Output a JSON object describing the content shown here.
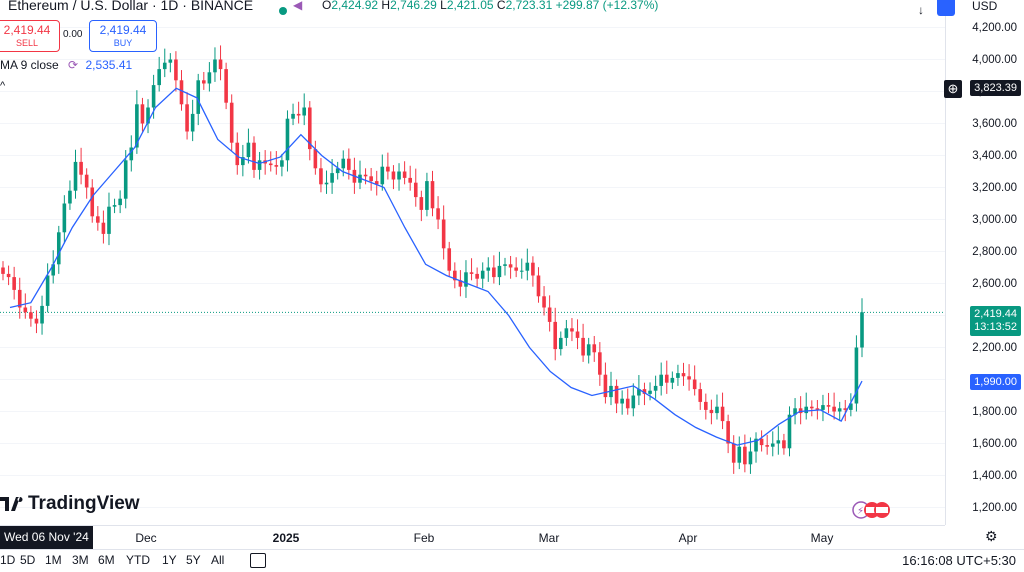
{
  "symbol": {
    "title": "Ethereum / U.S. Dollar · 1D · BINANCE",
    "open_label": "O",
    "open": "2,424.92",
    "high_label": "H",
    "high": "2,746.29",
    "low_label": "L",
    "low": "2,421.05",
    "close_label": "C",
    "close": "2,723.31",
    "change": "+299.87 (+12.37%)"
  },
  "trade": {
    "sell_price": "2,419.44",
    "sell_label": "SELL",
    "spread": "0.00",
    "buy_price": "2,419.44",
    "buy_label": "BUY"
  },
  "indicator": {
    "name": "MA 9 close",
    "value": "2,535.41"
  },
  "price_axis": {
    "currency": "USD",
    "ticks": [
      "4,200.00",
      "4,000.00",
      "3,800.00",
      "3,600.00",
      "3,400.00",
      "3,200.00",
      "3,000.00",
      "2,800.00",
      "2,600.00",
      "2,400.00",
      "2,200.00",
      "2,000.00",
      "1,800.00",
      "1,600.00",
      "1,400.00",
      "1,200.00"
    ],
    "crosshair_price": "3,823.39",
    "last_price": "2,419.44",
    "countdown": "13:13:52",
    "ma_price": "1,990.00"
  },
  "time_axis": {
    "cursor_label": "Wed 06 Nov '24",
    "labels": [
      "Dec",
      "2025",
      "Feb",
      "Mar",
      "Apr",
      "May"
    ]
  },
  "bottom": {
    "ranges": [
      "1D",
      "5D",
      "1M",
      "3M",
      "6M",
      "YTD",
      "1Y",
      "5Y",
      "All"
    ],
    "clock": "16:16:08 UTC+5:30"
  },
  "branding": {
    "logo_text": "TradingView"
  },
  "colors": {
    "up": "#089981",
    "down": "#f23645",
    "ma": "#2962ff",
    "grid": "#f0f3fa"
  },
  "chart_data": {
    "type": "candlestick",
    "title": "Ethereum / U.S. Dollar · 1D · BINANCE",
    "xlabel": "",
    "ylabel": "USD",
    "ylim": [
      1150,
      4250
    ],
    "x_labels": [
      "Dec",
      "2025",
      "Feb",
      "Mar",
      "Apr",
      "May"
    ],
    "series": [
      {
        "name": "ETHUSD",
        "ohlc_closes": [
          2660,
          2640,
          2560,
          2450,
          2420,
          2380,
          2350,
          2460,
          2650,
          2720,
          2920,
          3100,
          3180,
          3360,
          3280,
          3200,
          3020,
          2980,
          2910,
          3080,
          3090,
          3130,
          3370,
          3450,
          3720,
          3600,
          3700,
          3840,
          3940,
          3980,
          4000,
          3870,
          3720,
          3550,
          3660,
          3870,
          3850,
          3920,
          4000,
          3940,
          3730,
          3480,
          3340,
          3390,
          3480,
          3310,
          3370,
          3350,
          3340,
          3330,
          3370,
          3630,
          3660,
          3650,
          3700,
          3440,
          3320,
          3220,
          3230,
          3290,
          3320,
          3380,
          3310,
          3230,
          3280,
          3270,
          3240,
          3220,
          3330,
          3300,
          3250,
          3300,
          3260,
          3230,
          3140,
          3060,
          3240,
          3070,
          3000,
          2820,
          2680,
          2620,
          2580,
          2670,
          2660,
          2630,
          2680,
          2700,
          2640,
          2710,
          2720,
          2700,
          2680,
          2680,
          2730,
          2650,
          2520,
          2450,
          2360,
          2190,
          2260,
          2320,
          2300,
          2260,
          2150,
          2220,
          2170,
          2030,
          1890,
          1960,
          1850,
          1880,
          1820,
          1900,
          1940,
          1910,
          1930,
          1960,
          2030,
          1980,
          2010,
          2040,
          2020,
          2000,
          1940,
          1860,
          1810,
          1790,
          1830,
          1740,
          1600,
          1480,
          1580,
          1470,
          1550,
          1630,
          1590,
          1580,
          1600,
          1620,
          1570,
          1780,
          1820,
          1790,
          1830,
          1820,
          1810,
          1840,
          1830,
          1800,
          1820,
          1810,
          1850,
          2200,
          2420
        ]
      },
      {
        "name": "MA 9 close",
        "values_sampled": [
          2450,
          2480,
          2700,
          2950,
          3150,
          3300,
          3450,
          3700,
          3820,
          3760,
          3500,
          3390,
          3350,
          3390,
          3530,
          3400,
          3300,
          3250,
          3200,
          2950,
          2720,
          2650,
          2600,
          2550,
          2400,
          2200,
          2050,
          1950,
          1900,
          1930,
          1960,
          1880,
          1780,
          1700,
          1640,
          1590,
          1620,
          1720,
          1800,
          1810,
          1740,
          1990
        ]
      }
    ]
  }
}
